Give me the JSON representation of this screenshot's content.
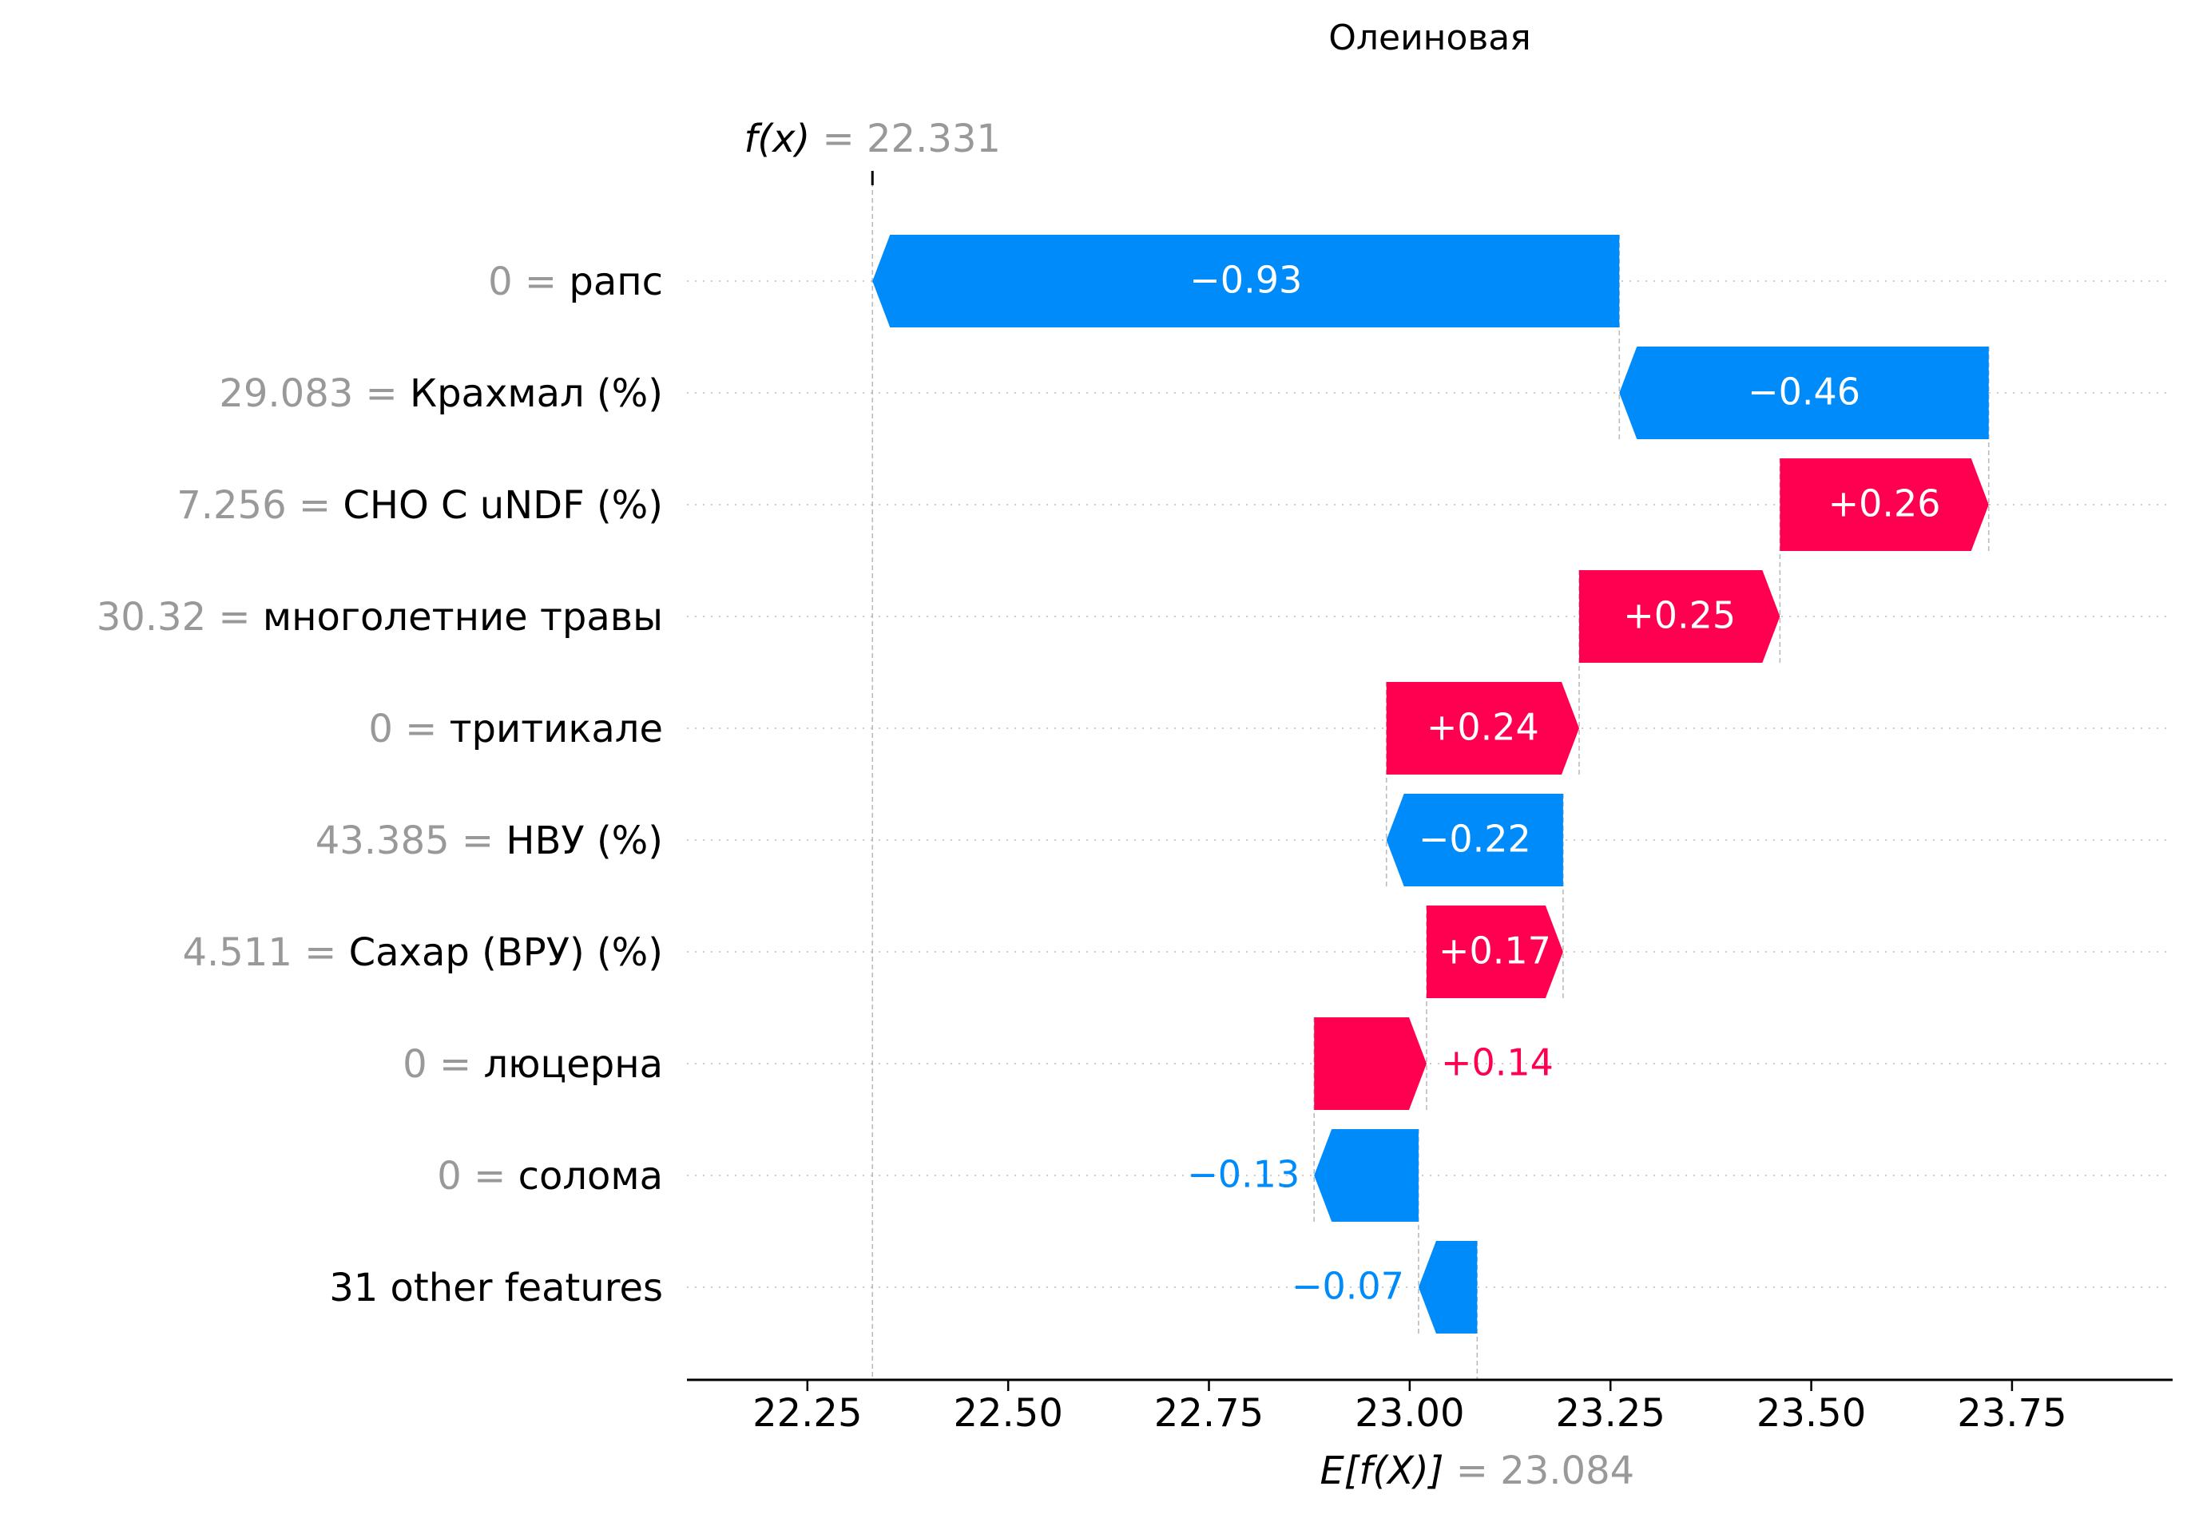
{
  "chart_data": {
    "type": "waterfall",
    "title": "Олеиновая",
    "fx_label": "f(x)",
    "fx_value": "22.331",
    "ex_label": "E[f(X)]",
    "ex_value": "23.084",
    "base_value": 23.084,
    "final_value": 22.331,
    "xlim": [
      22.1,
      23.95
    ],
    "xticks": [
      22.25,
      22.5,
      22.75,
      23.0,
      23.25,
      23.5,
      23.75
    ],
    "xtick_labels": [
      "22.25",
      "22.50",
      "22.75",
      "23.00",
      "23.25",
      "23.50",
      "23.75"
    ],
    "features": [
      {
        "value": "0",
        "name": "рапс",
        "shap": -0.93,
        "label": "−0.93",
        "start": 22.331,
        "end": 23.261,
        "label_outside": false
      },
      {
        "value": "29.083",
        "name": "Крахмал (%)",
        "shap": -0.46,
        "label": "−0.46",
        "start": 23.261,
        "end": 23.721,
        "label_outside": false
      },
      {
        "value": "7.256",
        "name": "CHO C uNDF (%)",
        "shap": 0.26,
        "label": "+0.26",
        "start": 23.461,
        "end": 23.721,
        "label_outside": false
      },
      {
        "value": "30.32",
        "name": "многолетние травы",
        "shap": 0.25,
        "label": "+0.25",
        "start": 23.211,
        "end": 23.461,
        "label_outside": false
      },
      {
        "value": "0",
        "name": "тритикале",
        "shap": 0.24,
        "label": "+0.24",
        "start": 22.971,
        "end": 23.211,
        "label_outside": false
      },
      {
        "value": "43.385",
        "name": "НВУ (%)",
        "shap": -0.22,
        "label": "−0.22",
        "start": 22.971,
        "end": 23.191,
        "label_outside": false
      },
      {
        "value": "4.511",
        "name": "Сахар (ВРУ) (%)",
        "shap": 0.17,
        "label": "+0.17",
        "start": 23.021,
        "end": 23.191,
        "label_outside": false
      },
      {
        "value": "0",
        "name": "люцерна",
        "shap": 0.14,
        "label": "+0.14",
        "start": 22.881,
        "end": 23.021,
        "label_outside": true
      },
      {
        "value": "0",
        "name": "солома",
        "shap": -0.13,
        "label": "−0.13",
        "start": 22.881,
        "end": 23.011,
        "label_outside": true
      },
      {
        "value": "",
        "name": "31 other features",
        "shap": -0.07,
        "label": "−0.07",
        "start": 23.011,
        "end": 23.084,
        "label_outside": true
      }
    ],
    "colors": {
      "positive": "#ff0051",
      "negative": "#008bfb",
      "value_gray": "#999999",
      "text": "#000000"
    }
  }
}
